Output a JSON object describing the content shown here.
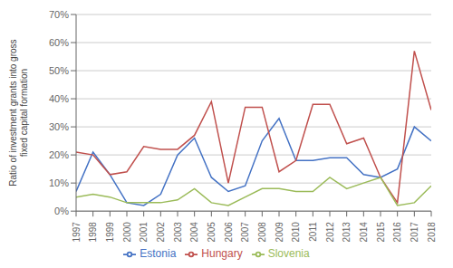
{
  "chart_data": {
    "type": "line",
    "ylabel": "Ratio of investment grants into gross\nfixed capital formation",
    "x": [
      1997,
      1998,
      1999,
      2000,
      2001,
      2002,
      2003,
      2004,
      2005,
      2006,
      2007,
      2008,
      2009,
      2010,
      2011,
      2012,
      2013,
      2014,
      2015,
      2016,
      2017,
      2018
    ],
    "series": [
      {
        "name": "Estonia",
        "color": "#4472C4",
        "values": [
          0.07,
          0.21,
          0.13,
          0.03,
          0.02,
          0.06,
          0.2,
          0.26,
          0.12,
          0.07,
          0.09,
          0.25,
          0.33,
          0.18,
          0.18,
          0.19,
          0.19,
          0.13,
          0.12,
          0.15,
          0.3,
          0.25
        ]
      },
      {
        "name": "Hungary",
        "color": "#C0504D",
        "values": [
          0.21,
          0.2,
          0.13,
          0.14,
          0.23,
          0.22,
          0.22,
          0.27,
          0.39,
          0.1,
          0.37,
          0.37,
          0.14,
          0.18,
          0.38,
          0.38,
          0.24,
          0.26,
          0.12,
          0.03,
          0.57,
          0.36
        ]
      },
      {
        "name": "Slovenia",
        "color": "#9BBB59",
        "values": [
          0.05,
          0.06,
          0.05,
          0.03,
          0.03,
          0.03,
          0.04,
          0.08,
          0.03,
          0.02,
          0.05,
          0.08,
          0.08,
          0.07,
          0.07,
          0.12,
          0.08,
          0.1,
          0.12,
          0.02,
          0.03,
          0.09
        ]
      }
    ],
    "xlim": [
      1997,
      2018
    ],
    "xticks": [
      1997,
      1998,
      1999,
      2000,
      2001,
      2002,
      2003,
      2004,
      2005,
      2006,
      2007,
      2008,
      2009,
      2010,
      2011,
      2012,
      2013,
      2014,
      2015,
      2016,
      2017,
      2018
    ],
    "ylim": [
      0.0,
      0.7
    ],
    "yticks": [
      {
        "value": 0.0,
        "label": "0%"
      },
      {
        "value": 0.1,
        "label": "10%"
      },
      {
        "value": 0.2,
        "label": "20%"
      },
      {
        "value": 0.3,
        "label": "30%"
      },
      {
        "value": 0.4,
        "label": "40%"
      },
      {
        "value": 0.5,
        "label": "50%"
      },
      {
        "value": 0.6,
        "label": "60%"
      },
      {
        "value": 0.7,
        "label": "70%"
      }
    ],
    "grid": true,
    "legend": "bottom"
  }
}
